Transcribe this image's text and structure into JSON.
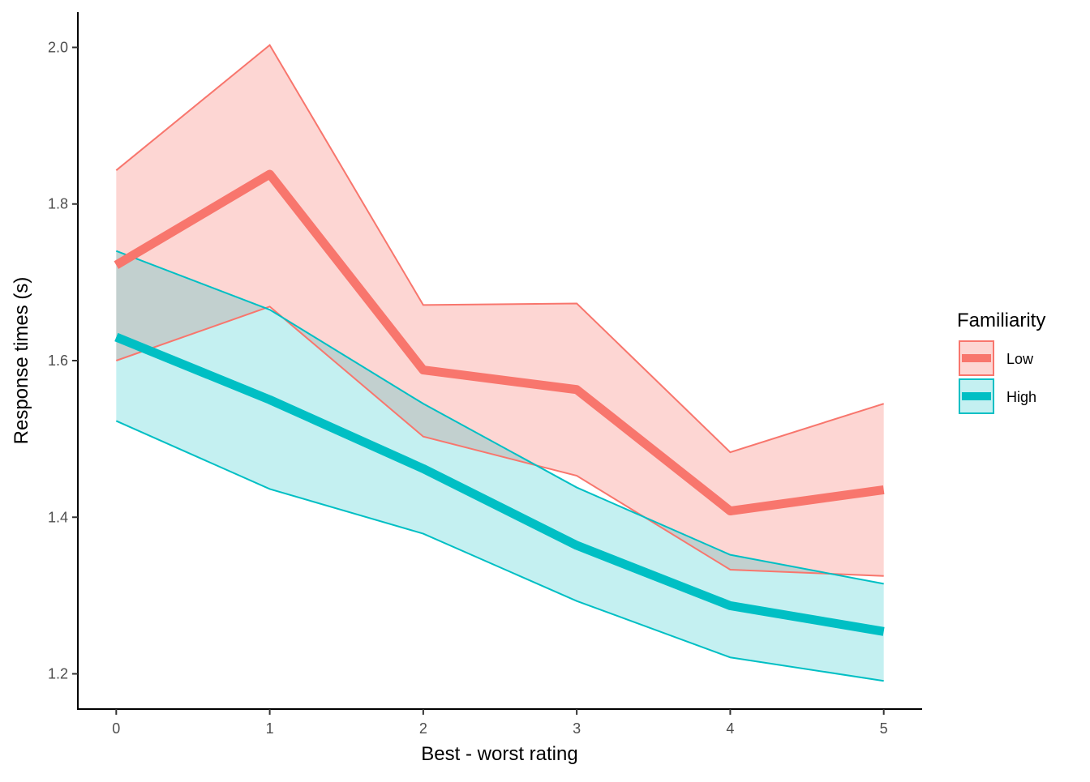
{
  "chart_data": {
    "type": "line",
    "xlabel": "Best - worst rating",
    "ylabel": "Response times (s)",
    "x": [
      0,
      1,
      2,
      3,
      4,
      5
    ],
    "x_ticks": [
      "0",
      "1",
      "2",
      "3",
      "4",
      "5"
    ],
    "xlim": [
      -0.25,
      5.25
    ],
    "ylim": [
      1.155,
      2.045
    ],
    "y_ticks": [
      1.2,
      1.4,
      1.6,
      1.8,
      2.0
    ],
    "y_tick_labels": [
      "1.2",
      "1.4",
      "1.6",
      "1.8",
      "2.0"
    ],
    "grid": false,
    "legend": {
      "title": "Familiarity",
      "position": "right"
    },
    "series": [
      {
        "name": "Low",
        "color": "#F8766D",
        "fill": "rgba(248,118,109,0.30)",
        "values": [
          1.722,
          1.838,
          1.588,
          1.563,
          1.408,
          1.435
        ],
        "upper": [
          1.843,
          2.003,
          1.671,
          1.673,
          1.483,
          1.545
        ],
        "lower": [
          1.6,
          1.669,
          1.503,
          1.453,
          1.333,
          1.325
        ]
      },
      {
        "name": "High",
        "color": "#00BFC4",
        "fill": "rgba(0,191,196,0.23)",
        "values": [
          1.63,
          1.55,
          1.462,
          1.364,
          1.287,
          1.254
        ],
        "upper": [
          1.74,
          1.665,
          1.545,
          1.438,
          1.352,
          1.315
        ],
        "lower": [
          1.523,
          1.436,
          1.379,
          1.293,
          1.221,
          1.191
        ]
      }
    ]
  }
}
